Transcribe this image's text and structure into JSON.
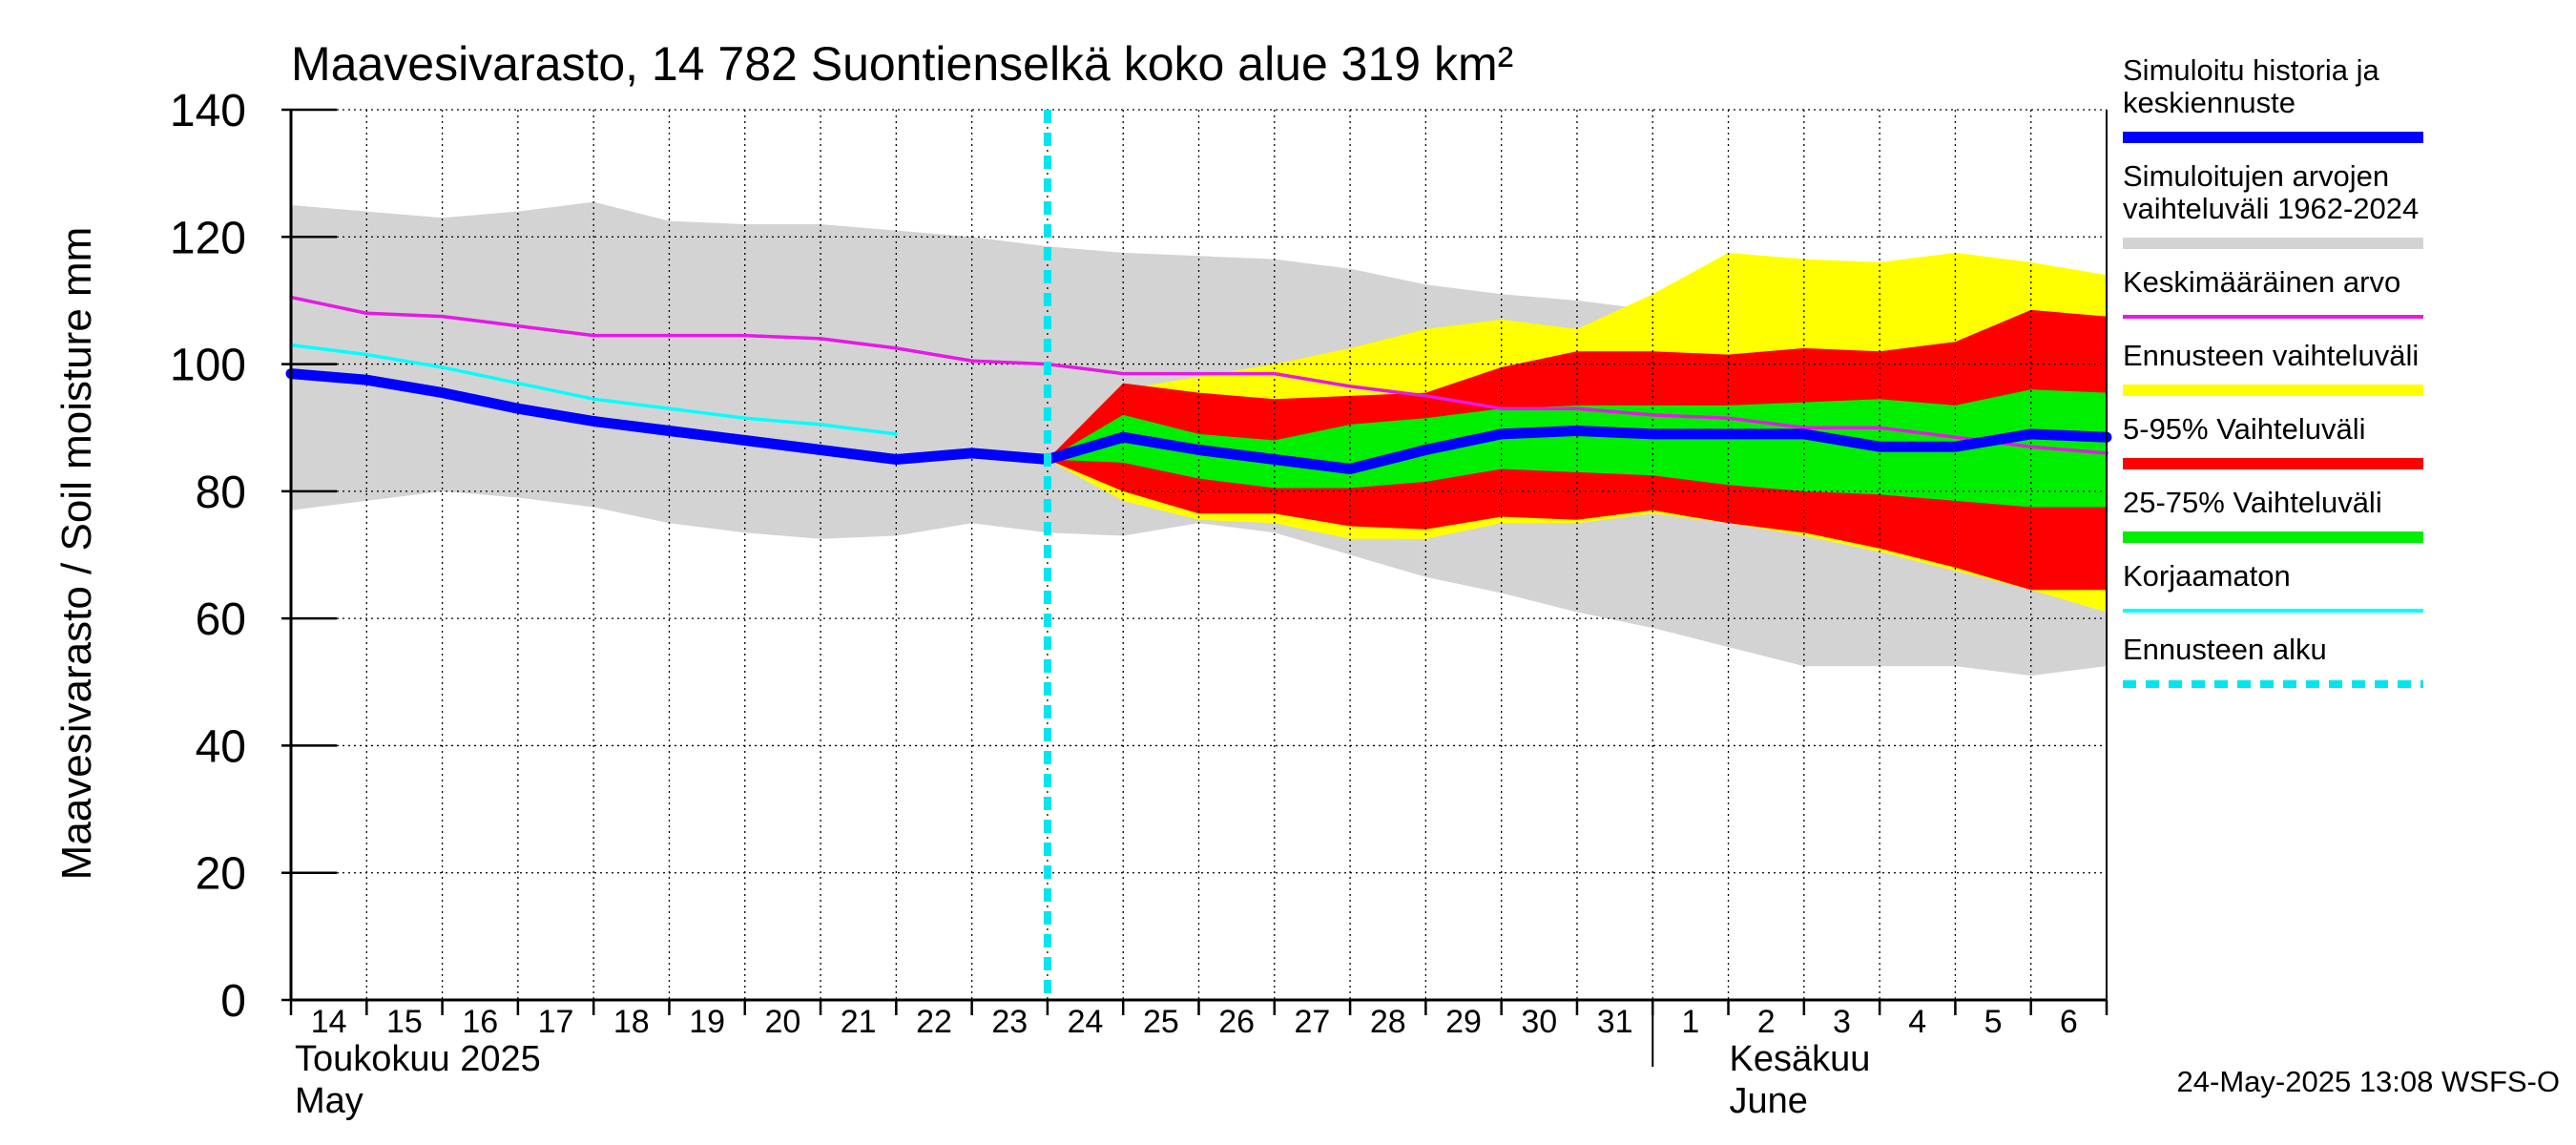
{
  "colors": {
    "simulated": "#0000ff",
    "hist_range": "#d3d3d3",
    "mean": "#e619e6",
    "forecast_range": "#ffff00",
    "p5_95": "#ff0000",
    "p25_75": "#00ee00",
    "uncorrected": "#00ffff",
    "forecast_start": "#00e5ee"
  },
  "chart_data": {
    "type": "area",
    "title": "Maavesivarasto, 14 782 Suontienselkä koko alue 319 km²",
    "ylabel": "Maavesivarasto / Soil moisture   mm",
    "ylim": [
      0,
      140
    ],
    "yticks": [
      0,
      20,
      40,
      60,
      80,
      100,
      120,
      140
    ],
    "xlim": [
      0,
      24
    ],
    "x_tick_labels": [
      "14",
      "15",
      "16",
      "17",
      "18",
      "19",
      "20",
      "21",
      "22",
      "23",
      "24",
      "25",
      "26",
      "27",
      "28",
      "29",
      "30",
      "31",
      "1",
      "2",
      "3",
      "4",
      "5",
      "6"
    ],
    "month_labels": [
      {
        "fi": "Toukokuu  2025",
        "en": "May"
      },
      {
        "fi": "Kesäkuu",
        "en": "June"
      }
    ],
    "forecast_start_x": 10,
    "series": [
      {
        "name": "Simuloitujen arvojen vaihteluväli 1962-2024",
        "kind": "band",
        "x": [
          0,
          1,
          2,
          3,
          4,
          5,
          6,
          7,
          8,
          9,
          10,
          11,
          12,
          13,
          14,
          15,
          16,
          17,
          18,
          19,
          20,
          21,
          22,
          23,
          24
        ],
        "upper": [
          125,
          124,
          123,
          124,
          125.5,
          122.5,
          122,
          122,
          121,
          120,
          118.5,
          117.5,
          117,
          116.5,
          115,
          112.5,
          111,
          110,
          108.5,
          107.5,
          107.5,
          108.5,
          105.5,
          106,
          105.5
        ],
        "lower": [
          77,
          78.5,
          80,
          79,
          77.5,
          75,
          73.5,
          72.5,
          73,
          75,
          73.5,
          73,
          75,
          73.5,
          70,
          66.5,
          64,
          61,
          58.5,
          55.5,
          52.5,
          52.5,
          52.5,
          51,
          52.5
        ]
      },
      {
        "name": "Ennusteen vaihteluväli",
        "kind": "band",
        "x": [
          10,
          11,
          12,
          13,
          14,
          15,
          16,
          17,
          18,
          19,
          20,
          21,
          22,
          23,
          24
        ],
        "upper": [
          85,
          96,
          98,
          100,
          102.5,
          105.5,
          107,
          105.5,
          111,
          117.5,
          116.5,
          116,
          117.5,
          116,
          114
        ],
        "lower": [
          85,
          78.5,
          75.5,
          75,
          72.5,
          72.5,
          75,
          75,
          76.5,
          75,
          73,
          70.5,
          67.5,
          64.5,
          61
        ]
      },
      {
        "name": "5-95% Vaihteluväli",
        "kind": "band",
        "x": [
          10,
          11,
          12,
          13,
          14,
          15,
          16,
          17,
          18,
          19,
          20,
          21,
          22,
          23,
          24
        ],
        "upper": [
          85,
          97,
          95.5,
          94.5,
          95,
          95.5,
          99.5,
          102,
          102,
          101.5,
          102.5,
          102,
          103.5,
          108.5,
          107.5
        ],
        "lower": [
          85,
          80,
          76.5,
          76.5,
          74.5,
          74,
          76,
          75.5,
          77,
          75,
          73.5,
          71,
          68,
          64.5,
          64.5
        ]
      },
      {
        "name": "25-75% Vaihteluväli",
        "kind": "band",
        "x": [
          10,
          11,
          12,
          13,
          14,
          15,
          16,
          17,
          18,
          19,
          20,
          21,
          22,
          23,
          24
        ],
        "upper": [
          85,
          92,
          89,
          88,
          90.5,
          91.5,
          93,
          93.5,
          93.5,
          93.5,
          94,
          94.5,
          93.5,
          96,
          95.5
        ],
        "lower": [
          85,
          84.5,
          82,
          80.5,
          80.5,
          81.5,
          83.5,
          83,
          82.5,
          81,
          80,
          79.5,
          78.5,
          77.5,
          77.5
        ]
      },
      {
        "name": "Keskimääräinen arvo",
        "kind": "line",
        "x": [
          0,
          1,
          2,
          3,
          4,
          5,
          6,
          7,
          8,
          9,
          10,
          11,
          12,
          13,
          14,
          15,
          16,
          17,
          18,
          19,
          20,
          21,
          22,
          23,
          24
        ],
        "values": [
          110.5,
          108,
          107.5,
          106,
          104.5,
          104.5,
          104.5,
          104,
          102.5,
          100.5,
          100,
          98.5,
          98.5,
          98.5,
          96.5,
          95,
          93,
          93,
          92,
          91.5,
          90,
          90,
          88.5,
          87,
          86
        ]
      },
      {
        "name": "Korjaamaton",
        "kind": "line",
        "x": [
          0,
          1,
          2,
          3,
          4,
          5,
          6,
          7,
          8
        ],
        "values": [
          103,
          101.5,
          99.5,
          97,
          94.5,
          93,
          91.5,
          90.5,
          89
        ]
      },
      {
        "name": "Simuloitu historia ja keskiennuste",
        "kind": "line",
        "x": [
          0,
          1,
          2,
          3,
          4,
          5,
          6,
          7,
          8,
          9,
          10,
          11,
          12,
          13,
          14,
          15,
          16,
          17,
          18,
          19,
          20,
          21,
          22,
          23,
          24
        ],
        "values": [
          98.5,
          97.5,
          95.5,
          93,
          91,
          89.5,
          88,
          86.5,
          85,
          86,
          85,
          88.5,
          86.5,
          85,
          83.5,
          86.5,
          89,
          89.5,
          89,
          89,
          89,
          87,
          87,
          89,
          88.5
        ]
      }
    ]
  },
  "legend": [
    {
      "key": "simulated",
      "lines": [
        "Simuloitu historia ja",
        "keskiennuste"
      ],
      "color": "#0000ff",
      "style": "thick"
    },
    {
      "key": "hist_range",
      "lines": [
        "Simuloitujen arvojen",
        "vaihteluväli 1962-2024"
      ],
      "color": "#d3d3d3",
      "style": "thick"
    },
    {
      "key": "mean",
      "lines": [
        "Keskimääräinen arvo"
      ],
      "color": "#e619e6",
      "style": "thin"
    },
    {
      "key": "forecast_range",
      "lines": [
        "Ennusteen vaihteluväli"
      ],
      "color": "#ffff00",
      "style": "thick"
    },
    {
      "key": "p5_95",
      "lines": [
        "5-95% Vaihteluväli"
      ],
      "color": "#ff0000",
      "style": "thick"
    },
    {
      "key": "p25_75",
      "lines": [
        "25-75% Vaihteluväli"
      ],
      "color": "#00ee00",
      "style": "thick"
    },
    {
      "key": "uncorrected",
      "lines": [
        "Korjaamaton"
      ],
      "color": "#00ffff",
      "style": "thin"
    },
    {
      "key": "forecast_start",
      "lines": [
        "Ennusteen alku"
      ],
      "color": "#00e5ee",
      "style": "dashed"
    }
  ],
  "footer": "24-May-2025 13:08 WSFS-O"
}
